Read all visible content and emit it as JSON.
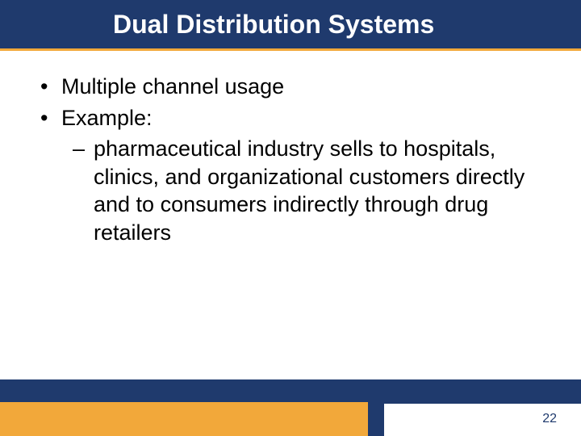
{
  "colors": {
    "navy": "#1f3a6d",
    "gold": "#f2a83a",
    "white": "#ffffff",
    "text": "#000000"
  },
  "typography": {
    "title_fontsize": 32,
    "title_weight": "bold",
    "body_fontsize": 27,
    "pagenum_fontsize": 16,
    "font_family": "Arial"
  },
  "layout": {
    "slide_width": 720,
    "slide_height": 540,
    "title_bar_height": 60,
    "bottom_stripe_height": 28,
    "gold_block_width": 456,
    "gold_block_height": 42
  },
  "title": "Dual Distribution Systems",
  "bullets": {
    "level1": [
      {
        "mark": "•",
        "text": "Multiple channel usage"
      },
      {
        "mark": "•",
        "text": "Example:"
      }
    ],
    "level2": [
      {
        "mark": "–",
        "text": "pharmaceutical industry sells to hospitals, clinics, and organizational customers directly and to consumers indirectly through drug retailers"
      }
    ]
  },
  "page_number": "22"
}
